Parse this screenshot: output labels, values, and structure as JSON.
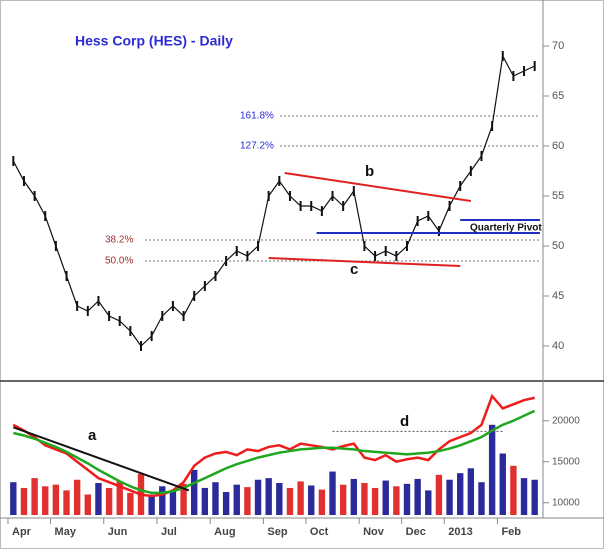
{
  "chart_data": {
    "type": "stock",
    "title": "Hess Corp (HES) - Daily",
    "categories": [
      "Apr",
      null,
      null,
      null,
      "May",
      null,
      null,
      null,
      null,
      "Jun",
      null,
      null,
      null,
      null,
      "Jul",
      null,
      null,
      null,
      null,
      "Aug",
      null,
      null,
      null,
      null,
      "Sep",
      null,
      null,
      null,
      "Oct",
      null,
      null,
      null,
      null,
      "Nov",
      null,
      null,
      null,
      "Dec",
      null,
      null,
      null,
      "2013",
      null,
      null,
      null,
      null,
      "Feb",
      null,
      null,
      null
    ],
    "price": {
      "name": "HES",
      "color": "#111111",
      "values": [
        58.5,
        56.5,
        55,
        53,
        50,
        47,
        44,
        43.5,
        44.5,
        43,
        42.5,
        41.5,
        40,
        41,
        43,
        44,
        43,
        45,
        46,
        47,
        48.5,
        49.5,
        49,
        50,
        55,
        56.5,
        55,
        54,
        54,
        53.5,
        55,
        54,
        55.5,
        50,
        49,
        49.5,
        49,
        50,
        52.5,
        53,
        51.5,
        54,
        56,
        57.5,
        59,
        62,
        69,
        67,
        67.5,
        68
      ]
    },
    "ylim": [
      36.6,
      74.1
    ],
    "yticks": [
      40,
      45,
      50,
      55,
      60,
      65,
      70
    ],
    "levels": [
      {
        "label": "161.8%",
        "value": 63
      },
      {
        "label": "127.2%",
        "value": 60
      },
      {
        "label": "38.2%",
        "value": 50.6
      },
      {
        "label": "50.0%",
        "value": 48.5
      }
    ],
    "trendlines": [
      {
        "color": "#e02020",
        "panel": "price",
        "x": [
          25.5,
          43
        ],
        "values": [
          57.3,
          54.5
        ]
      },
      {
        "color": "#e02020",
        "panel": "price",
        "x": [
          24,
          42
        ],
        "values": [
          48.8,
          48
        ]
      },
      {
        "color": "#2030c0",
        "panel": "price",
        "x": [
          28.5,
          49.5
        ],
        "values": [
          51.3,
          51.3
        ]
      },
      {
        "color": "#2030c0",
        "panel": "price",
        "x": [
          42,
          49.5
        ],
        "values": [
          52.6,
          52.6
        ]
      },
      {
        "color": "#111111",
        "panel": "volume",
        "x": [
          0,
          16.5
        ],
        "values": [
          19200,
          11500
        ]
      }
    ],
    "annotations": [
      "b",
      "c",
      "Quarterly Pivot",
      "a",
      "d"
    ],
    "volume": {
      "up_color": "#2a2a9a",
      "down_color": "#e03030",
      "values": [
        12500,
        11800,
        13000,
        12000,
        12200,
        11500,
        12800,
        11000,
        12400,
        11800,
        12600,
        11200,
        13500,
        11000,
        12000,
        11500,
        12300,
        14000,
        11800,
        12500,
        11300,
        12200,
        11900,
        12800,
        13000,
        12400,
        11800,
        12600,
        12100,
        11600,
        13800,
        12200,
        12900,
        12400,
        11800,
        12700,
        12000,
        12300,
        12900,
        11500,
        13400,
        12800,
        13600,
        14200,
        12500,
        19500,
        16000,
        14500,
        13000,
        12800
      ]
    },
    "series": [
      {
        "color": "#ee1c1c",
        "values": [
          19500,
          18800,
          18000,
          17000,
          16500,
          16000,
          15000,
          14000,
          13000,
          12500,
          12000,
          11500,
          11000,
          10800,
          11000,
          11500,
          12500,
          14500,
          15500,
          16000,
          16200,
          15800,
          16500,
          16300,
          16800,
          17000,
          16500,
          17200,
          17000,
          16800,
          16500,
          16900,
          17200,
          15500,
          15200,
          15800,
          15000,
          15300,
          15500,
          15200,
          16500,
          17500,
          18000,
          18500,
          19500,
          23000,
          21500,
          22000,
          22500,
          22800
        ]
      },
      {
        "color": "#1fa81f",
        "values": [
          18500,
          18200,
          17800,
          17300,
          16800,
          16200,
          15500,
          14800,
          14000,
          13300,
          12600,
          12000,
          11500,
          11200,
          11200,
          11400,
          11800,
          12400,
          13000,
          13600,
          14200,
          14700,
          15100,
          15500,
          15800,
          16100,
          16300,
          16500,
          16600,
          16700,
          16700,
          16600,
          16500,
          16300,
          16200,
          16100,
          16000,
          15900,
          16000,
          16100,
          16300,
          16600,
          17000,
          17500,
          18000,
          18800,
          19500,
          20000,
          20600,
          21200
        ]
      }
    ],
    "dashed_level": {
      "value": 18700,
      "x": [
        30,
        46
      ]
    },
    "y2lim": [
      8500,
      24600
    ],
    "y2ticks": [
      10000,
      15000,
      20000
    ]
  }
}
